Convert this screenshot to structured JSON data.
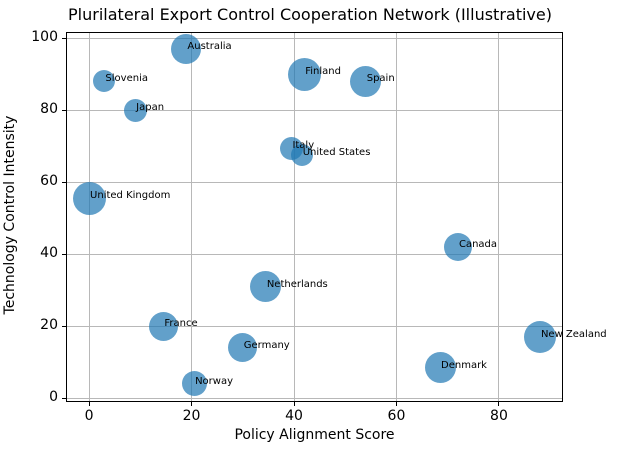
{
  "chart_data": {
    "type": "scatter",
    "title": "Plurilateral Export Control Cooperation Network (Illustrative)",
    "xlabel": "Policy Alignment Score",
    "ylabel": "Technology Control Intensity",
    "xlim": [
      -4.5,
      92.5
    ],
    "ylim": [
      -1,
      101.7
    ],
    "xticks": [
      0,
      20,
      40,
      60,
      80
    ],
    "yticks": [
      0,
      20,
      40,
      60,
      80,
      100
    ],
    "grid": true,
    "legend": false,
    "marker_color_rgb": [
      31,
      119,
      180
    ],
    "marker_color_hex": "#1f77b4",
    "marker_alpha": 0.7,
    "points": [
      {
        "label": "Australia",
        "x": 19,
        "y": 97,
        "size": 30
      },
      {
        "label": "Slovenia",
        "x": 3,
        "y": 88,
        "size": 22
      },
      {
        "label": "Japan",
        "x": 9,
        "y": 80,
        "size": 23
      },
      {
        "label": "Finland",
        "x": 42,
        "y": 90,
        "size": 33
      },
      {
        "label": "Spain",
        "x": 54,
        "y": 88,
        "size": 31
      },
      {
        "label": "Italy",
        "x": 39.5,
        "y": 69.5,
        "size": 23
      },
      {
        "label": "United States",
        "x": 41.5,
        "y": 67.5,
        "size": 22
      },
      {
        "label": "United Kingdom",
        "x": 0,
        "y": 55.5,
        "size": 33
      },
      {
        "label": "Canada",
        "x": 72,
        "y": 42,
        "size": 28
      },
      {
        "label": "Netherlands",
        "x": 34.5,
        "y": 31,
        "size": 31
      },
      {
        "label": "New Zealand",
        "x": 88,
        "y": 17,
        "size": 32
      },
      {
        "label": "Denmark",
        "x": 68.5,
        "y": 8.5,
        "size": 31
      },
      {
        "label": "France",
        "x": 14.5,
        "y": 20,
        "size": 29
      },
      {
        "label": "Germany",
        "x": 30,
        "y": 14,
        "size": 29
      },
      {
        "label": "Norway",
        "x": 20.5,
        "y": 4,
        "size": 25
      }
    ]
  }
}
